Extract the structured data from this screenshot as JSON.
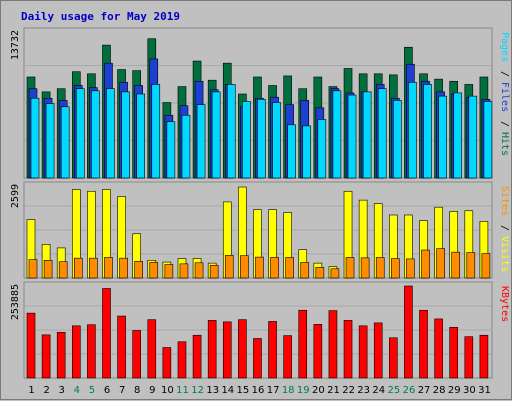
{
  "chart_data": {
    "type": "bar",
    "title": "Daily usage for May 2019",
    "x": [
      "1",
      "2",
      "3",
      "4",
      "5",
      "6",
      "7",
      "8",
      "9",
      "10",
      "11",
      "12",
      "13",
      "14",
      "15",
      "16",
      "17",
      "18",
      "19",
      "20",
      "21",
      "22",
      "23",
      "24",
      "25",
      "26",
      "27",
      "28",
      "29",
      "30",
      "31"
    ],
    "weekend_days": [
      "4",
      "5",
      "11",
      "12",
      "18",
      "19",
      "25",
      "26"
    ],
    "panels": [
      {
        "id": "hits-files-pages",
        "ymax_label": "13732",
        "ymax": 13732,
        "series": [
          {
            "name": "Hits",
            "color": "#006f3d",
            "values": [
              9500,
              8100,
              8400,
              10000,
              9800,
              12500,
              10200,
              10100,
              13100,
              7100,
              8600,
              11000,
              9200,
              10800,
              7900,
              9500,
              8700,
              9600,
              8400,
              9500,
              8600,
              10300,
              9800,
              9800,
              9700,
              12300,
              9800,
              9300,
              9100,
              8800,
              9500
            ]
          },
          {
            "name": "Files",
            "color": "#1f3fd2",
            "values": [
              8400,
              7500,
              7300,
              8700,
              8500,
              10800,
              9000,
              8700,
              11200,
              5900,
              6800,
              9100,
              8300,
              8800,
              6700,
              7500,
              7600,
              6900,
              7300,
              6600,
              8400,
              8000,
              8100,
              8800,
              7500,
              10700,
              9100,
              8100,
              7900,
              7600,
              7400
            ]
          },
          {
            "name": "Pages",
            "color": "#00d8ff",
            "values": [
              7500,
              7000,
              6700,
              8400,
              8200,
              8400,
              8100,
              7900,
              8800,
              5300,
              5900,
              6900,
              8100,
              8800,
              7200,
              7400,
              7100,
              5000,
              4900,
              5500,
              8200,
              7800,
              8100,
              8400,
              7300,
              9000,
              8800,
              7700,
              8000,
              7700,
              7200
            ]
          }
        ],
        "legend": [
          "Pages",
          "/",
          "Files",
          "/",
          "Hits"
        ]
      },
      {
        "id": "visits-sites",
        "ymax_label": "2599",
        "ymax": 2599,
        "series": [
          {
            "name": "Visits",
            "color": "#ffff00",
            "values": [
              1650,
              950,
              850,
              2500,
              2450,
              2500,
              2300,
              1250,
              500,
              450,
              550,
              550,
              420,
              2150,
              2570,
              1930,
              1930,
              1850,
              800,
              420,
              320,
              2450,
              2200,
              2100,
              1780,
              1780,
              1620,
              2000,
              1880,
              1900,
              1600
            ]
          },
          {
            "name": "Sites",
            "color": "#ff8c00",
            "values": [
              520,
              500,
              460,
              560,
              560,
              580,
              560,
              470,
              440,
              380,
              400,
              430,
              360,
              640,
              630,
              590,
              580,
              580,
              440,
              300,
              260,
              580,
              570,
              580,
              550,
              540,
              790,
              830,
              730,
              720,
              690
            ]
          }
        ],
        "legend": [
          "Sites",
          "/",
          "Visits"
        ]
      },
      {
        "id": "kbytes",
        "ymax_label": "253885",
        "ymax": 253885,
        "series": [
          {
            "name": "KBytes",
            "color": "#ff0000",
            "values": [
              179000,
              119000,
              126000,
              144000,
              147000,
              247000,
              171000,
              131000,
              161000,
              84000,
              100000,
              118000,
              159000,
              155000,
              161000,
              109000,
              156000,
              117000,
              187000,
              148000,
              186000,
              159000,
              144000,
              152000,
              111000,
              253885,
              187000,
              163000,
              140000,
              114000,
              118000
            ]
          }
        ],
        "legend": [
          "KBytes"
        ]
      }
    ],
    "colors": {
      "background": "#c0c0c0",
      "panel_bg": "#c0c0c0",
      "title": "#0000c8",
      "weekend_label": "#00785a",
      "weekday_label": "#000000",
      "separator": "#000000"
    },
    "grid": true,
    "legend_placement": "right-vertical"
  }
}
